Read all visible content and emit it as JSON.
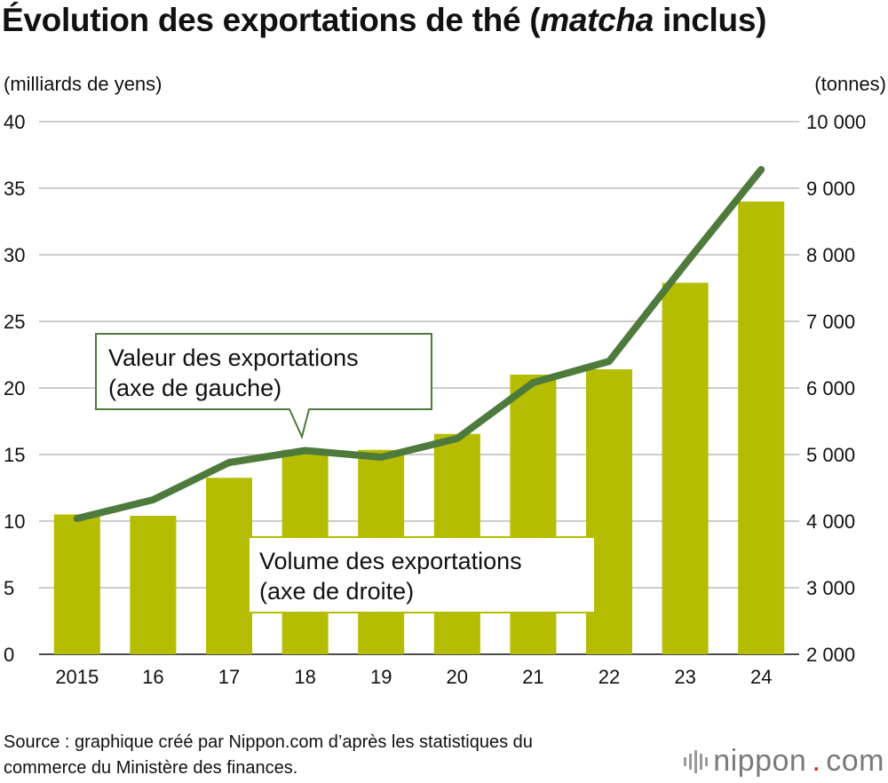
{
  "title_prefix": "Évolution des exportations de thé (",
  "title_italic": "matcha",
  "title_suffix": " inclus)",
  "left_unit": "(milliards de yens)",
  "right_unit": "(tonnes)",
  "callout_value": [
    "Valeur des exportations",
    "(axe de gauche)"
  ],
  "callout_volume": [
    "Volume des exportations",
    "(axe de droite)"
  ],
  "source": [
    "Source : graphique créé par Nippon.com d’après les statistiques du",
    "commerce du Ministère des finances."
  ],
  "brand": {
    "name": "nippon",
    "dot": ".",
    "suffix": "com"
  },
  "colors": {
    "bar": "#b5bd00",
    "line": "#4e7a3c",
    "grid": "#cccccc",
    "callout_border": "#4e7a3c"
  },
  "chart_data": {
    "type": "bar+line",
    "categories": [
      "2015",
      "16",
      "17",
      "18",
      "19",
      "20",
      "21",
      "22",
      "23",
      "24"
    ],
    "bar_series": {
      "axis": "right",
      "values": [
        4100,
        4080,
        4650,
        5070,
        5070,
        5310,
        6200,
        6280,
        7580,
        8800
      ]
    },
    "line_series": {
      "axis": "left",
      "values": [
        10.2,
        11.6,
        14.4,
        15.3,
        14.8,
        16.2,
        20.4,
        22.0,
        29.3,
        36.4
      ]
    },
    "left_axis": {
      "min": 0,
      "max": 40,
      "ticks": [
        "0",
        "5",
        "10",
        "15",
        "20",
        "25",
        "30",
        "35",
        "40"
      ]
    },
    "right_axis": {
      "min": 2000,
      "max": 10000,
      "ticks": [
        "2 000",
        "3 000",
        "4 000",
        "5 000",
        "6 000",
        "7 000",
        "8 000",
        "9 000",
        "10 000"
      ]
    },
    "grid": true
  }
}
